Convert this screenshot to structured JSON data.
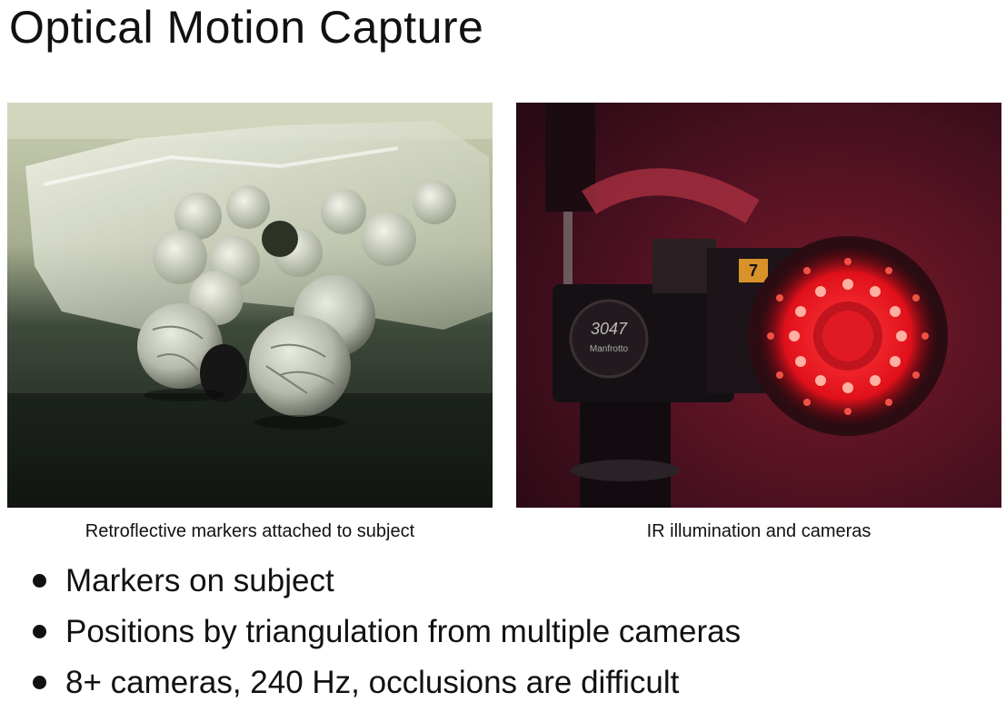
{
  "slide": {
    "title": "Optical Motion Capture"
  },
  "figures": [
    {
      "caption": "Retroflective markers attached to subject",
      "image": "reflective-marker-balls-photo"
    },
    {
      "caption": "IR illumination and cameras",
      "image": "ir-led-ring-camera-photo",
      "visible_labels": {
        "camera_number": "7",
        "mount_model": "3047",
        "mount_brand": "Manfrotto"
      }
    }
  ],
  "bullets": [
    "Markers on subject",
    "Positions by triangulation from multiple cameras",
    "8+ cameras, 240 Hz, occlusions are difficult"
  ]
}
